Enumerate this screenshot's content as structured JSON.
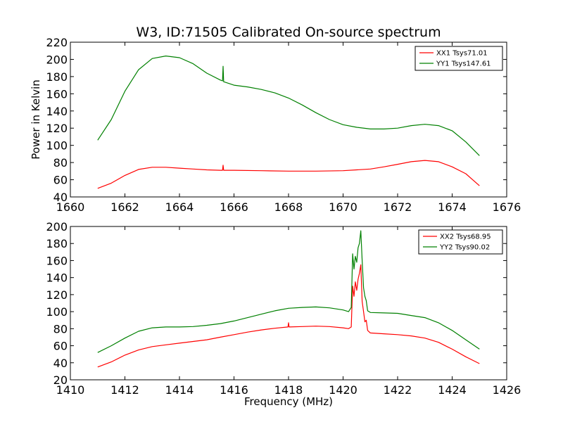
{
  "title": "W3, ID:71505 Calibrated On-source spectrum",
  "colors": {
    "red": "#ff0000",
    "green": "#008000"
  },
  "chart_data": [
    {
      "type": "line",
      "xlabel": "",
      "ylabel": "Power in Kelvin",
      "xlim": [
        1660,
        1676
      ],
      "ylim": [
        40,
        220
      ],
      "xticks": [
        1660,
        1662,
        1664,
        1666,
        1668,
        1670,
        1672,
        1674,
        1676
      ],
      "yticks": [
        40,
        60,
        80,
        100,
        120,
        140,
        160,
        180,
        200,
        220
      ],
      "legend_position": "top-right",
      "series": [
        {
          "name": "XX1 Tsys71.01",
          "color": "#ff0000",
          "points": [
            [
              1661.0,
              50
            ],
            [
              1661.5,
              56
            ],
            [
              1662.0,
              65
            ],
            [
              1662.5,
              72
            ],
            [
              1663.0,
              74.5
            ],
            [
              1663.5,
              74.5
            ],
            [
              1664.0,
              73.5
            ],
            [
              1664.5,
              72.5
            ],
            [
              1665.0,
              71.5
            ],
            [
              1665.5,
              71
            ],
            [
              1665.58,
              71
            ],
            [
              1665.6,
              77
            ],
            [
              1665.62,
              71
            ],
            [
              1666.0,
              71
            ],
            [
              1667.0,
              70.5
            ],
            [
              1668.0,
              70
            ],
            [
              1669.0,
              70
            ],
            [
              1670.0,
              70.5
            ],
            [
              1670.5,
              71.5
            ],
            [
              1671.0,
              72.5
            ],
            [
              1671.5,
              75
            ],
            [
              1672.0,
              78
            ],
            [
              1672.5,
              81
            ],
            [
              1673.0,
              82.5
            ],
            [
              1673.5,
              81
            ],
            [
              1674.0,
              75
            ],
            [
              1674.5,
              67
            ],
            [
              1675.0,
              53
            ]
          ]
        },
        {
          "name": "YY1 Tsys147.61",
          "color": "#008000",
          "points": [
            [
              1661.0,
              106
            ],
            [
              1661.5,
              130
            ],
            [
              1662.0,
              163
            ],
            [
              1662.5,
              188
            ],
            [
              1663.0,
              201
            ],
            [
              1663.5,
              204
            ],
            [
              1664.0,
              202
            ],
            [
              1664.5,
              195
            ],
            [
              1665.0,
              184
            ],
            [
              1665.5,
              176
            ],
            [
              1665.58,
              175
            ],
            [
              1665.6,
              192
            ],
            [
              1665.62,
              174
            ],
            [
              1666.0,
              170
            ],
            [
              1666.5,
              168
            ],
            [
              1667.0,
              165
            ],
            [
              1667.5,
              161
            ],
            [
              1668.0,
              155
            ],
            [
              1668.5,
              147
            ],
            [
              1669.0,
              138
            ],
            [
              1669.5,
              130
            ],
            [
              1670.0,
              124
            ],
            [
              1670.5,
              121
            ],
            [
              1671.0,
              119
            ],
            [
              1671.5,
              119
            ],
            [
              1672.0,
              120
            ],
            [
              1672.5,
              123
            ],
            [
              1673.0,
              124.5
            ],
            [
              1673.5,
              123
            ],
            [
              1674.0,
              117
            ],
            [
              1674.5,
              104
            ],
            [
              1675.0,
              88
            ]
          ]
        }
      ]
    },
    {
      "type": "line",
      "xlabel": "Frequency (MHz)",
      "ylabel": "",
      "xlim": [
        1410,
        1426
      ],
      "ylim": [
        20,
        200
      ],
      "xticks": [
        1410,
        1412,
        1414,
        1416,
        1418,
        1420,
        1422,
        1424,
        1426
      ],
      "yticks": [
        20,
        40,
        60,
        80,
        100,
        120,
        140,
        160,
        180,
        200
      ],
      "legend_position": "top-right",
      "series": [
        {
          "name": "XX2 Tsys68.95",
          "color": "#ff0000",
          "points": [
            [
              1411.0,
              35
            ],
            [
              1411.5,
              41
            ],
            [
              1412.0,
              49
            ],
            [
              1412.5,
              55
            ],
            [
              1413.0,
              59
            ],
            [
              1413.5,
              61
            ],
            [
              1414.0,
              63
            ],
            [
              1414.5,
              65
            ],
            [
              1415.0,
              67
            ],
            [
              1415.5,
              70
            ],
            [
              1416.0,
              73
            ],
            [
              1416.5,
              76
            ],
            [
              1417.0,
              78.5
            ],
            [
              1417.5,
              80.5
            ],
            [
              1417.98,
              82
            ],
            [
              1418.0,
              87
            ],
            [
              1418.02,
              82
            ],
            [
              1418.5,
              82.5
            ],
            [
              1419.0,
              83
            ],
            [
              1419.5,
              82.5
            ],
            [
              1420.0,
              81
            ],
            [
              1420.2,
              80
            ],
            [
              1420.3,
              82
            ],
            [
              1420.35,
              130
            ],
            [
              1420.4,
              118
            ],
            [
              1420.45,
              135
            ],
            [
              1420.5,
              125
            ],
            [
              1420.55,
              138
            ],
            [
              1420.6,
              145
            ],
            [
              1420.65,
              155
            ],
            [
              1420.7,
              112
            ],
            [
              1420.75,
              100
            ],
            [
              1420.8,
              88
            ],
            [
              1420.85,
              90
            ],
            [
              1420.9,
              78
            ],
            [
              1421.0,
              75
            ],
            [
              1421.5,
              74
            ],
            [
              1422.0,
              73
            ],
            [
              1422.5,
              71.5
            ],
            [
              1423.0,
              69
            ],
            [
              1423.5,
              64
            ],
            [
              1424.0,
              56
            ],
            [
              1424.5,
              47
            ],
            [
              1425.0,
              39
            ]
          ]
        },
        {
          "name": "YY2 Tsys90.02",
          "color": "#008000",
          "points": [
            [
              1411.0,
              52
            ],
            [
              1411.5,
              60
            ],
            [
              1412.0,
              69
            ],
            [
              1412.5,
              77
            ],
            [
              1413.0,
              81
            ],
            [
              1413.5,
              82
            ],
            [
              1414.0,
              82
            ],
            [
              1414.5,
              82.5
            ],
            [
              1415.0,
              84
            ],
            [
              1415.5,
              86
            ],
            [
              1416.0,
              89
            ],
            [
              1416.5,
              93
            ],
            [
              1417.0,
              97
            ],
            [
              1417.5,
              101
            ],
            [
              1418.0,
              104
            ],
            [
              1418.5,
              105
            ],
            [
              1419.0,
              105.5
            ],
            [
              1419.5,
              104.5
            ],
            [
              1420.0,
              102
            ],
            [
              1420.2,
              100
            ],
            [
              1420.3,
              105
            ],
            [
              1420.35,
              168
            ],
            [
              1420.4,
              150
            ],
            [
              1420.45,
              165
            ],
            [
              1420.5,
              158
            ],
            [
              1420.55,
              175
            ],
            [
              1420.6,
              180
            ],
            [
              1420.65,
              195
            ],
            [
              1420.7,
              160
            ],
            [
              1420.75,
              128
            ],
            [
              1420.8,
              118
            ],
            [
              1420.85,
              113
            ],
            [
              1420.9,
              101
            ],
            [
              1421.0,
              99
            ],
            [
              1421.5,
              98.5
            ],
            [
              1422.0,
              98
            ],
            [
              1422.5,
              95.5
            ],
            [
              1423.0,
              93
            ],
            [
              1423.5,
              87
            ],
            [
              1424.0,
              78
            ],
            [
              1424.5,
              67
            ],
            [
              1425.0,
              56
            ]
          ]
        }
      ]
    }
  ]
}
